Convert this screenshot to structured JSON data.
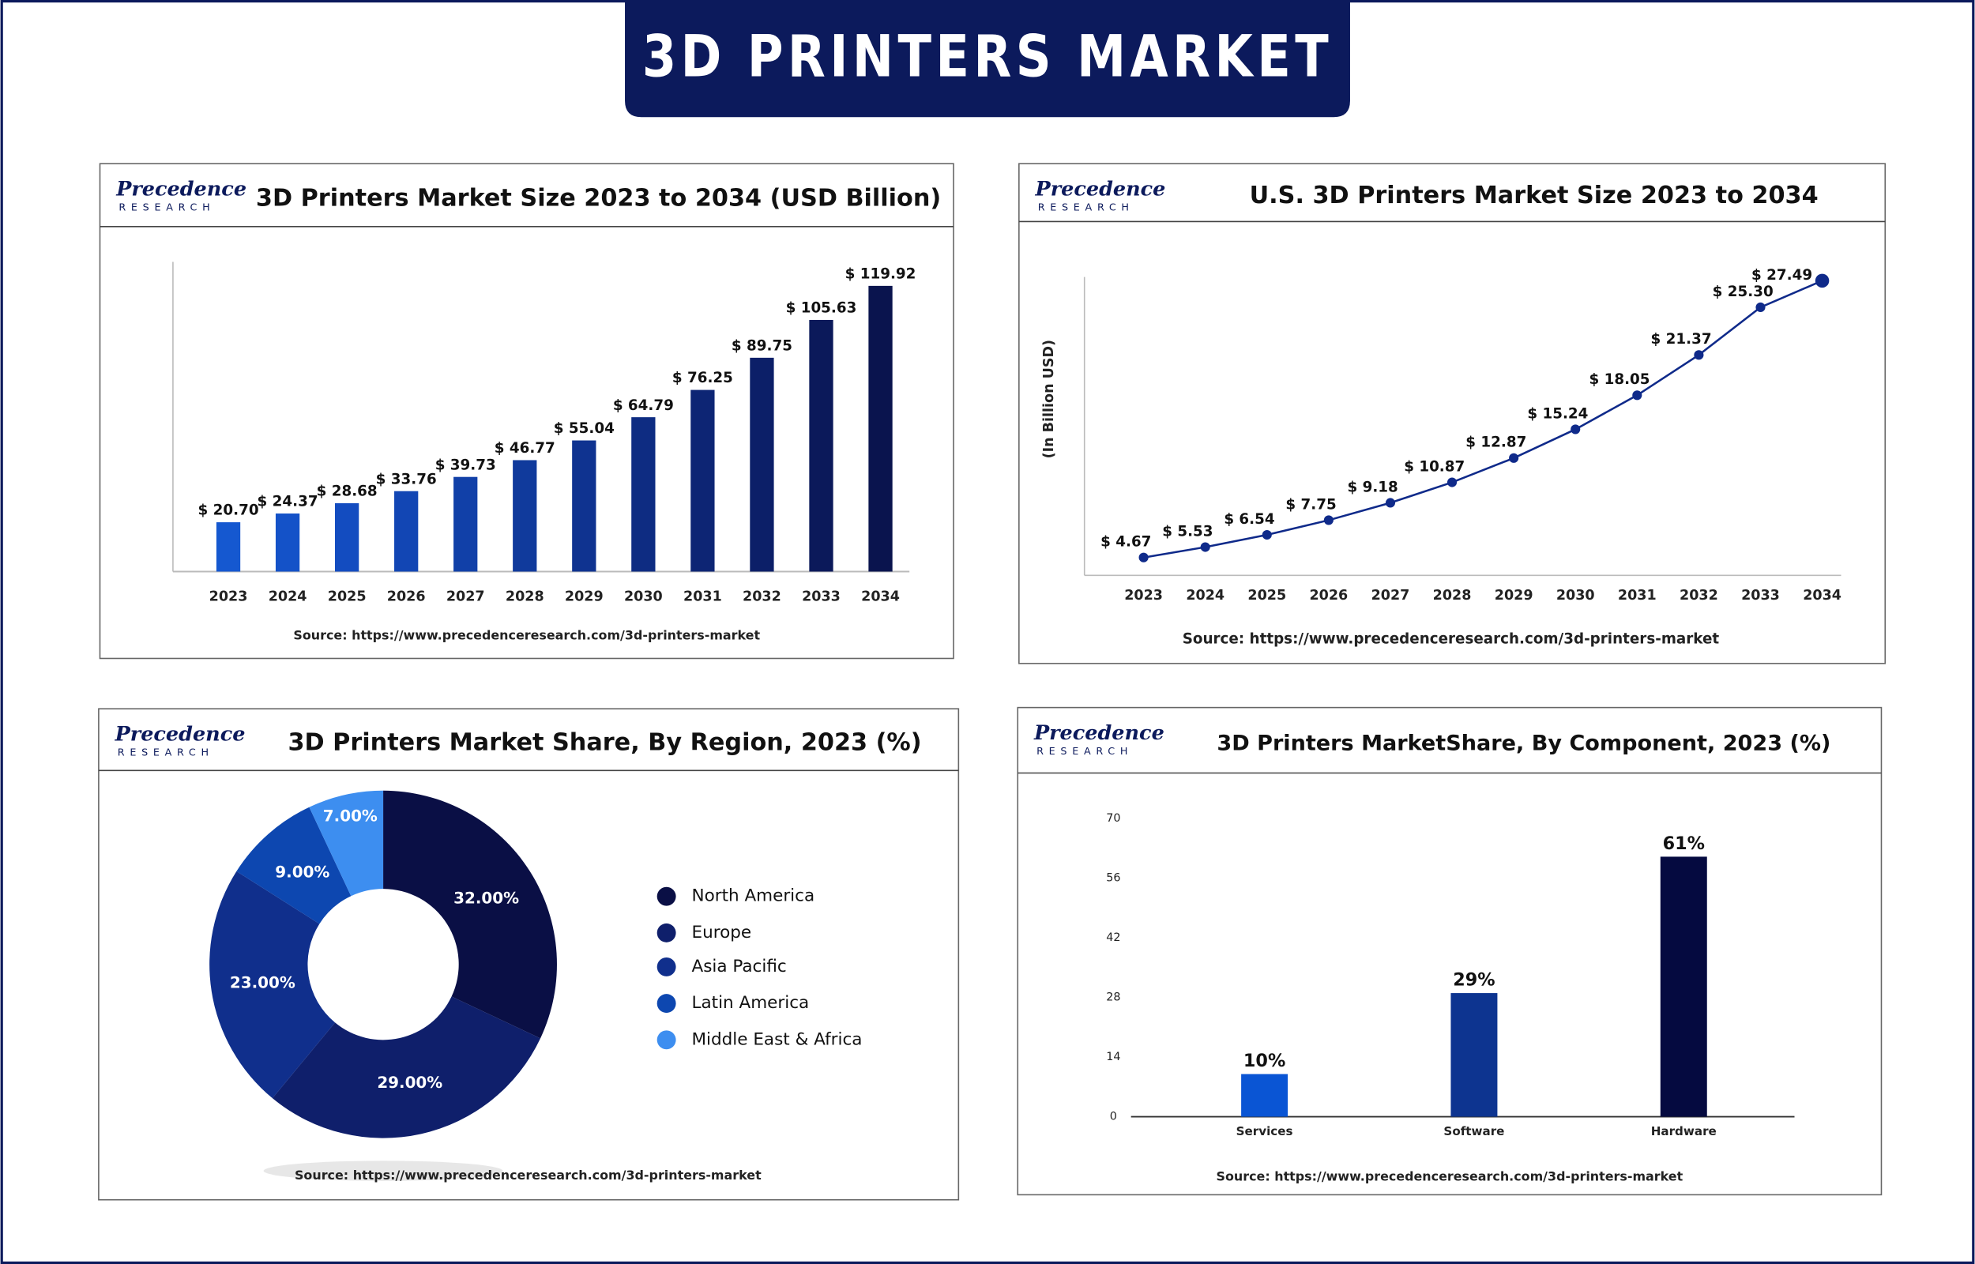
{
  "title": "3D PRINTERS MARKET",
  "brand": "Precedence",
  "brand_sub": "RESEARCH",
  "chart_data": [
    {
      "type": "bar",
      "title": "3D Printers Market Size 2023 to 2034 (USD Billion)",
      "categories": [
        "2023",
        "2024",
        "2025",
        "2026",
        "2027",
        "2028",
        "2029",
        "2030",
        "2031",
        "2032",
        "2033",
        "2034"
      ],
      "values": [
        20.7,
        24.37,
        28.68,
        33.76,
        39.73,
        46.77,
        55.04,
        64.79,
        76.25,
        89.75,
        105.63,
        119.92
      ],
      "value_labels": [
        "$ 20.70",
        "$ 24.37",
        "$ 28.68",
        "$ 33.76",
        "$ 39.73",
        "$ 46.77",
        "$ 55.04",
        "$ 64.79",
        "$ 76.25",
        "$ 89.75",
        "$ 105.63",
        "$ 119.92"
      ],
      "colors": [
        "#1558d0",
        "#1452c8",
        "#134cc0",
        "#1246b4",
        "#1140a8",
        "#103a9c",
        "#0f3390",
        "#0e2c82",
        "#0d2574",
        "#0c1f68",
        "#0b195a",
        "#0a144e"
      ],
      "ylim": [
        0,
        130
      ],
      "source": "Source: https://www.precedenceresearch.com/3d-printers-market"
    },
    {
      "type": "line",
      "title": "U.S. 3D Printers Market Size 2023 to 2034",
      "ylabel": "(In Billion USD)",
      "categories": [
        "2023",
        "2024",
        "2025",
        "2026",
        "2027",
        "2028",
        "2029",
        "2030",
        "2031",
        "2032",
        "2033",
        "2034"
      ],
      "values": [
        4.67,
        5.53,
        6.54,
        7.75,
        9.18,
        10.87,
        12.87,
        15.24,
        18.05,
        21.37,
        25.3,
        27.49
      ],
      "value_labels": [
        "$ 4.67",
        "$ 5.53",
        "$ 6.54",
        "$ 7.75",
        "$ 9.18",
        "$ 10.87",
        "$ 12.87",
        "$ 15.24",
        "$ 18.05",
        "$ 21.37",
        "$ 25.30",
        "$ 27.49"
      ],
      "color": "#0f2a8a",
      "ylim": [
        3.2,
        27.8
      ],
      "source": "Source: https://www.precedenceresearch.com/3d-printers-market"
    },
    {
      "type": "pie",
      "title": "3D Printers Market Share, By Region, 2023 (%)",
      "categories": [
        "North America",
        "Europe",
        "Asia Pacific",
        "Latin America",
        "Middle East & Africa"
      ],
      "values": [
        32,
        29,
        23,
        9,
        7
      ],
      "value_labels": [
        "32.00%",
        "29.00%",
        "23.00%",
        "9.00%",
        "7.00%"
      ],
      "colors": [
        "#0a0f45",
        "#0f1f6b",
        "#102f8c",
        "#0d47b0",
        "#3d8ef0"
      ],
      "legend": "right",
      "source": "Source: https://www.precedenceresearch.com/3d-printers-market"
    },
    {
      "type": "bar",
      "title": "3D Printers MarketShare, By Component, 2023 (%)",
      "categories": [
        "Services",
        "Software",
        "Hardware"
      ],
      "values": [
        10,
        29,
        61
      ],
      "value_labels": [
        "10%",
        "29%",
        "61%"
      ],
      "colors": [
        "#0a55d4",
        "#0d3490",
        "#050a40"
      ],
      "ylim": [
        0,
        70
      ],
      "yticks": [
        0,
        14,
        28,
        42,
        56,
        70
      ],
      "source": "Source: https://www.precedenceresearch.com/3d-printers-market"
    }
  ]
}
